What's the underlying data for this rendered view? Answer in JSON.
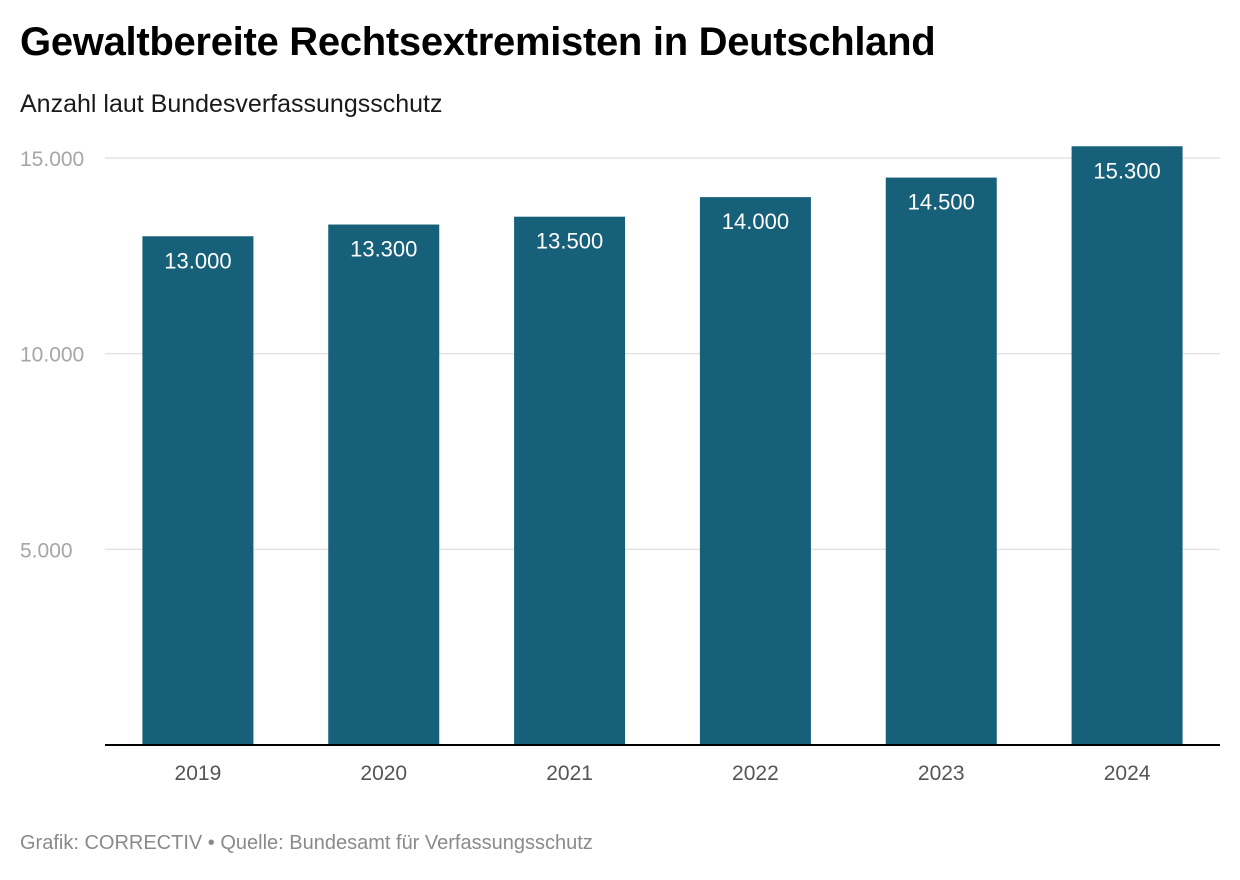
{
  "title": "Gewaltbereite Rechtsextremisten in Deutschland",
  "subtitle": "Anzahl laut Bundesverfassungsschutz",
  "footer": "Grafik: CORRECTIV • Quelle: Bundesamt für Verfassungsschutz",
  "colors": {
    "bar": "#17607a",
    "grid": "#e3e3e3",
    "axis": "#000000"
  },
  "chart_data": {
    "type": "bar",
    "title": "Gewaltbereite Rechtsextremisten in Deutschland",
    "subtitle": "Anzahl laut Bundesverfassungsschutz",
    "categories": [
      "2019",
      "2020",
      "2021",
      "2022",
      "2023",
      "2024"
    ],
    "values": [
      13000,
      13300,
      13500,
      14000,
      14500,
      15300
    ],
    "value_labels": [
      "13.000",
      "13.300",
      "13.500",
      "14.000",
      "14.500",
      "15.300"
    ],
    "xlabel": "",
    "ylabel": "",
    "ylim": [
      0,
      15000
    ],
    "yticks": [
      5000,
      10000,
      15000
    ],
    "ytick_labels": [
      "5.000",
      "10.000",
      "15.000"
    ],
    "grid": true,
    "legend": false
  }
}
